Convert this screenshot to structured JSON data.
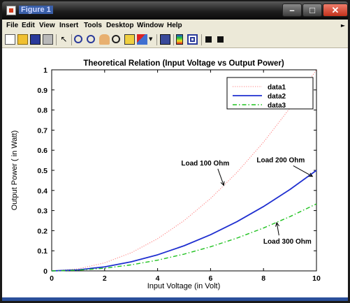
{
  "window": {
    "title": "Figure 1",
    "buttons": {
      "minimize": "–",
      "maximize": "□",
      "close": "✕"
    }
  },
  "menu": {
    "items": [
      "File",
      "Edit",
      "View",
      "Insert",
      "Tools",
      "Desktop",
      "Window",
      "Help"
    ],
    "overflow_icon": "chevron-right-icon"
  },
  "toolbar": {
    "tools": [
      "new-figure-icon",
      "open-file-icon",
      "save-icon",
      "print-icon",
      "pointer-icon",
      "zoom-in-icon",
      "zoom-out-icon",
      "pan-icon",
      "rotate-3d-icon",
      "data-cursor-icon",
      "brush-icon",
      "link-plot-icon",
      "colorbar-icon",
      "legend-icon",
      "hide-plot-tools-icon",
      "show-plot-tools-icon"
    ]
  },
  "colors": {
    "data1": "#ff8080",
    "data2": "#1f2fd0",
    "data3": "#1fc21f"
  },
  "chart_data": {
    "type": "line",
    "title": "Theoretical Relation (Input Voltage vs Output Power)",
    "xlabel": "Input Voltage (in Volt)",
    "ylabel": "Output Power ( in Watt)",
    "xlim": [
      0,
      10
    ],
    "ylim": [
      0,
      1
    ],
    "xticks": [
      "0",
      "2",
      "4",
      "6",
      "8",
      "10"
    ],
    "yticks": [
      "0",
      "0.1",
      "0.2",
      "0.3",
      "0.4",
      "0.5",
      "0.6",
      "0.7",
      "0.8",
      "0.9",
      "1"
    ],
    "grid": false,
    "legend_position": "top-right",
    "x": [
      0,
      1,
      2,
      3,
      4,
      5,
      6,
      7,
      8,
      9,
      10
    ],
    "series": [
      {
        "name": "data1",
        "style": "dotted",
        "values": [
          0,
          0.01,
          0.04,
          0.09,
          0.16,
          0.25,
          0.36,
          0.49,
          0.64,
          0.81,
          1.0
        ]
      },
      {
        "name": "data2",
        "style": "solid",
        "values": [
          0,
          0.005,
          0.02,
          0.045,
          0.08,
          0.125,
          0.18,
          0.245,
          0.32,
          0.405,
          0.5
        ]
      },
      {
        "name": "data3",
        "style": "dash-dot",
        "values": [
          0,
          0.0033,
          0.0133,
          0.03,
          0.0533,
          0.0833,
          0.12,
          0.1633,
          0.2133,
          0.27,
          0.3333
        ]
      }
    ],
    "annotations": [
      {
        "text": "Load 100 Ohm",
        "text_x": 5.8,
        "text_y": 0.525,
        "arrow_x": 6.5,
        "arrow_y": 0.425
      },
      {
        "text": "Load 200 Ohm",
        "text_x": 8.65,
        "text_y": 0.54,
        "arrow_x": 9.85,
        "arrow_y": 0.47
      },
      {
        "text": "Load 300 Ohm",
        "text_x": 8.9,
        "text_y": 0.135,
        "arrow_x": 8.5,
        "arrow_y": 0.24
      }
    ]
  }
}
